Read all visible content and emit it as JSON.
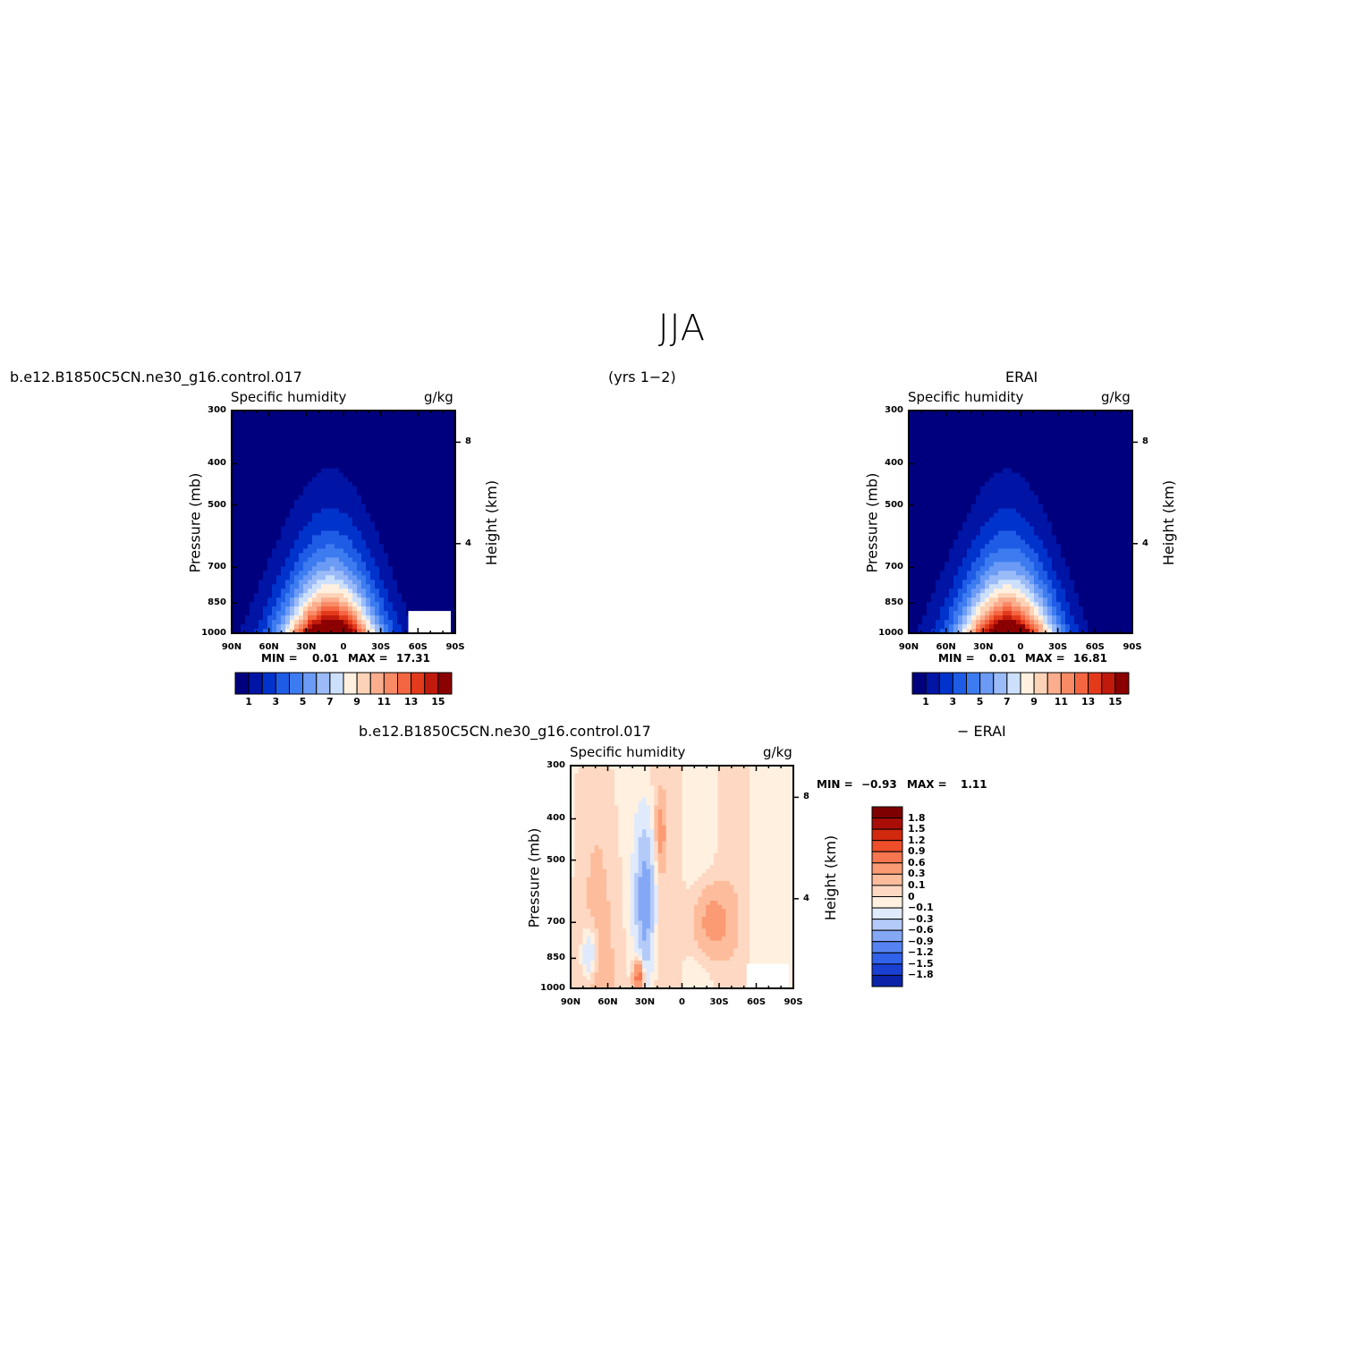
{
  "title": "JJA",
  "header": {
    "left_case": "b.e12.B1850C5CN.ne30_g16.control.017",
    "center_years": "(yrs 1−2)",
    "right_case": "ERAI",
    "bottom_case": "b.e12.B1850C5CN.ne30_g16.control.017",
    "bottom_suffix": "− ERAI"
  },
  "colors": {
    "abs_scale": [
      "#00007f",
      "#0014a5",
      "#0033cc",
      "#1f5ce6",
      "#3d7cf0",
      "#6b9bf5",
      "#9bbbf8",
      "#cde0fb",
      "#fff0e0",
      "#fdd3b8",
      "#fbae8e",
      "#f88a66",
      "#f36641",
      "#e43a1c",
      "#c01a0c",
      "#8b0000"
    ],
    "diff_scale": [
      "#00007f",
      "#0a23a8",
      "#1a40d2",
      "#3062ea",
      "#5584f2",
      "#85a8f6",
      "#b4cbf9",
      "#dfeafd",
      "#fff0e0",
      "#fed8c2",
      "#fdbd9c",
      "#fb9b74",
      "#f7764f",
      "#ef4e2a",
      "#d2280e",
      "#a80e05",
      "#7f0000"
    ]
  },
  "panels": [
    {
      "id": "model",
      "subtitle": "Specific humidity",
      "units": "g/kg",
      "ylabel": "Pressure (mb)",
      "rlabel": "Height (km)",
      "yticks": [
        "300",
        "400",
        "500",
        "700",
        "850",
        "1000"
      ],
      "xticks": [
        "90N",
        "60N",
        "30N",
        "0",
        "30S",
        "60S",
        "90S"
      ],
      "hticks": [
        "8",
        "4"
      ],
      "min_label": "MIN =",
      "min_value": "0.01",
      "max_label": "MAX =",
      "max_value": "17.31",
      "colorbar_labels": [
        "1",
        "3",
        "5",
        "7",
        "9",
        "11",
        "13",
        "15"
      ]
    },
    {
      "id": "obs",
      "subtitle": "Specific humidity",
      "units": "g/kg",
      "ylabel": "Pressure (mb)",
      "rlabel": "Height (km)",
      "yticks": [
        "300",
        "400",
        "500",
        "700",
        "850",
        "1000"
      ],
      "xticks": [
        "90N",
        "60N",
        "30N",
        "0",
        "30S",
        "60S",
        "90S"
      ],
      "hticks": [
        "8",
        "4"
      ],
      "min_label": "MIN =",
      "min_value": "0.01",
      "max_label": "MAX =",
      "max_value": "16.81",
      "colorbar_labels": [
        "1",
        "3",
        "5",
        "7",
        "9",
        "11",
        "13",
        "15"
      ]
    },
    {
      "id": "diff",
      "subtitle": "Specific humidity",
      "units": "g/kg",
      "ylabel": "Pressure (mb)",
      "rlabel": "Height (km)",
      "yticks": [
        "300",
        "400",
        "500",
        "700",
        "850",
        "1000"
      ],
      "xticks": [
        "90N",
        "60N",
        "30N",
        "0",
        "30S",
        "60S",
        "90S"
      ],
      "hticks": [
        "8",
        "4"
      ],
      "min_label": "MIN =",
      "min_value": "−0.93",
      "max_label": "MAX =",
      "max_value": "1.11",
      "colorbar_labels": [
        "1.8",
        "1.5",
        "1.2",
        "0.9",
        "0.6",
        "0.3",
        "0.1",
        "0",
        "−0.1",
        "−0.3",
        "−0.6",
        "−0.9",
        "−1.2",
        "−1.5",
        "−1.8"
      ]
    }
  ],
  "chart_data": [
    {
      "type": "heatmap",
      "title": "Specific humidity",
      "units": "g/kg",
      "xlabel": "",
      "ylabel": "Pressure (mb)",
      "x_ticks": [
        "90N",
        "60N",
        "30N",
        "0",
        "30S",
        "60S",
        "90S"
      ],
      "y_ticks": [
        300,
        400,
        500,
        700,
        850,
        1000
      ],
      "ylim": [
        1000,
        300
      ],
      "y_scale": "log",
      "levels": [
        1,
        2,
        3,
        4,
        5,
        6,
        7,
        8,
        9,
        10,
        11,
        12,
        13,
        14,
        15
      ],
      "min": 0.01,
      "max": 17.31,
      "peak": {
        "lat": "~10N",
        "pressure": 1000,
        "value": 17.31
      }
    },
    {
      "type": "heatmap",
      "title": "Specific humidity",
      "units": "g/kg",
      "xlabel": "",
      "ylabel": "Pressure (mb)",
      "x_ticks": [
        "90N",
        "60N",
        "30N",
        "0",
        "30S",
        "60S",
        "90S"
      ],
      "y_ticks": [
        300,
        400,
        500,
        700,
        850,
        1000
      ],
      "ylim": [
        1000,
        300
      ],
      "y_scale": "log",
      "levels": [
        1,
        2,
        3,
        4,
        5,
        6,
        7,
        8,
        9,
        10,
        11,
        12,
        13,
        14,
        15
      ],
      "min": 0.01,
      "max": 16.81,
      "peak": {
        "lat": "~10N",
        "pressure": 1000,
        "value": 16.81
      }
    },
    {
      "type": "heatmap",
      "title": "Specific humidity",
      "units": "g/kg",
      "xlabel": "",
      "ylabel": "Pressure (mb)",
      "x_ticks": [
        "90N",
        "60N",
        "30N",
        "0",
        "30S",
        "60S",
        "90S"
      ],
      "y_ticks": [
        300,
        400,
        500,
        700,
        850,
        1000
      ],
      "ylim": [
        1000,
        300
      ],
      "y_scale": "log",
      "levels": [
        -1.8,
        -1.5,
        -1.2,
        -0.9,
        -0.6,
        -0.3,
        -0.1,
        0,
        0.1,
        0.3,
        0.6,
        0.9,
        1.2,
        1.5,
        1.8
      ],
      "min": -0.93,
      "max": 1.11
    }
  ]
}
